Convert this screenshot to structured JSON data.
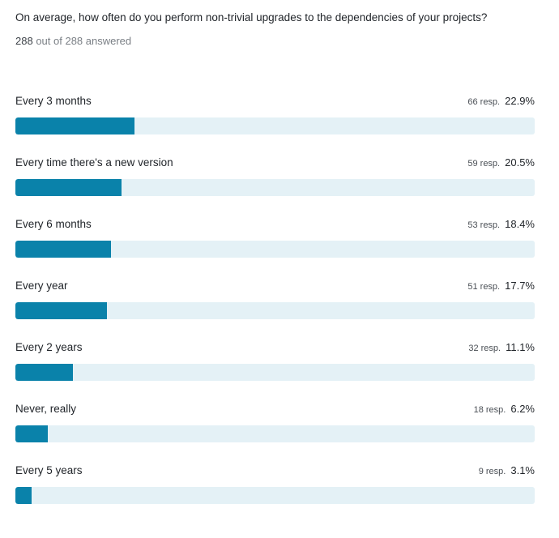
{
  "question": "On average, how often do you perform non-trivial upgrades to the dependencies of your projects?",
  "answered": {
    "count": "288",
    "suffix": "out of 288 answered"
  },
  "resp_unit": "resp.",
  "colors": {
    "bar_fill": "#0a82aa",
    "bar_track": "#e4f1f6"
  },
  "chart_data": {
    "type": "bar",
    "orientation": "horizontal",
    "title": "On average, how often do you perform non-trivial upgrades to the dependencies of your projects?",
    "total_responses": 288,
    "categories": [
      "Every 3 months",
      "Every time there's a new version",
      "Every 6 months",
      "Every year",
      "Every 2 years",
      "Never, really",
      "Every 5 years"
    ],
    "responses": [
      66,
      59,
      53,
      51,
      32,
      18,
      9
    ],
    "values": [
      22.9,
      20.5,
      18.4,
      17.7,
      11.1,
      6.2,
      3.1
    ],
    "value_labels": [
      "22.9%",
      "20.5%",
      "18.4%",
      "17.7%",
      "11.1%",
      "6.2%",
      "3.1%"
    ],
    "xlim": [
      0,
      100
    ]
  }
}
